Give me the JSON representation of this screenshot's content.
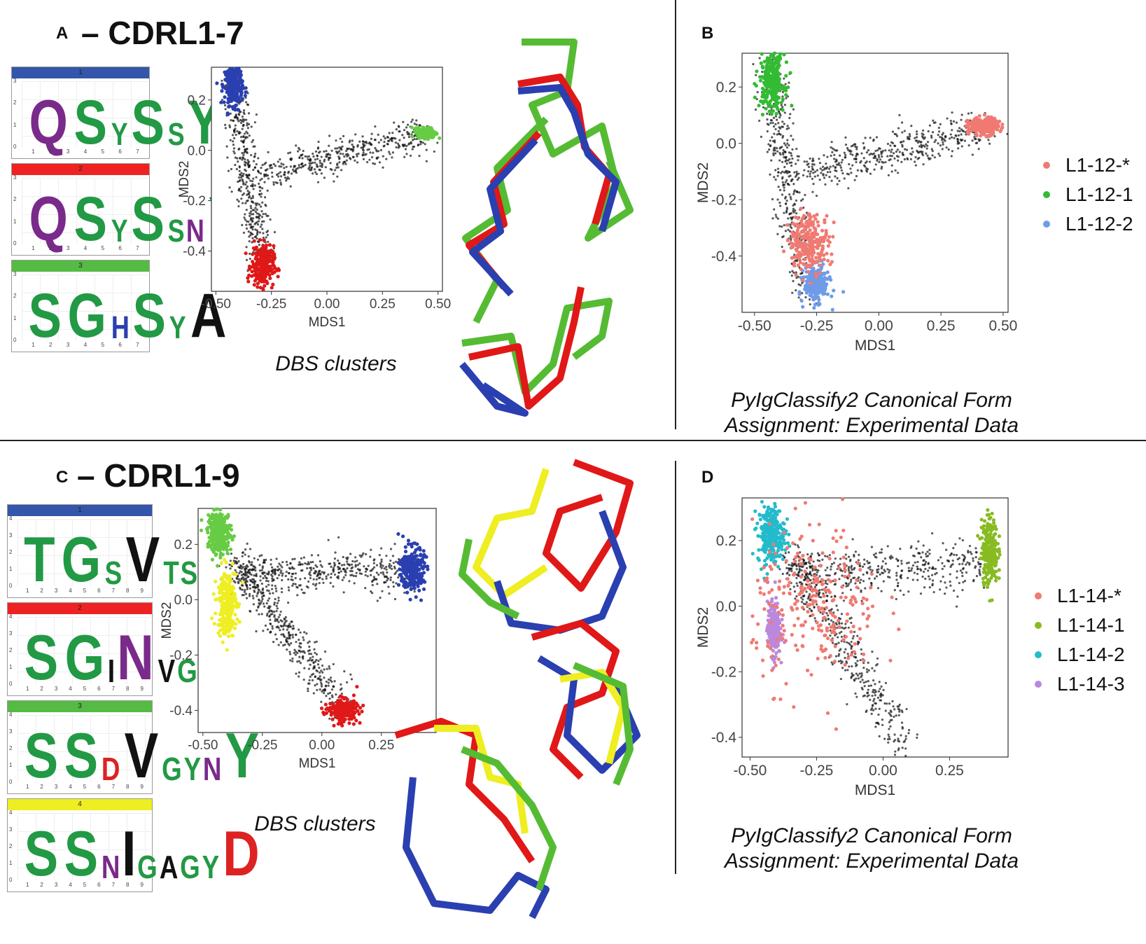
{
  "panelA": {
    "letter": "A",
    "title": "– CDRL1-7",
    "caption": "DBS clusters",
    "logos": [
      {
        "num": "1",
        "color": "#3355aa",
        "seq": "QSYSSY",
        "yticks": [
          "3",
          "2",
          "1",
          "0"
        ],
        "xticks": [
          "1",
          "2",
          "3",
          "4",
          "5",
          "6",
          "7"
        ]
      },
      {
        "num": "2",
        "color": "#ee2222",
        "seq": "QSYSSNY",
        "yticks": [
          "3",
          "2",
          "1",
          "0"
        ],
        "xticks": [
          "1",
          "2",
          "3",
          "4",
          "5",
          "6",
          "7"
        ]
      },
      {
        "num": "3",
        "color": "#55bb44",
        "seq": "SGHSYA",
        "yticks": [
          "3",
          "2",
          "1",
          "0"
        ],
        "xticks": [
          "1",
          "2",
          "3",
          "4",
          "5",
          "6",
          "7"
        ]
      }
    ]
  },
  "panelB": {
    "letter": "B",
    "caption1": "PyIgClassify2 Canonical Form",
    "caption2": "Assignment: Experimental Data",
    "legend": [
      {
        "label": "L1-12-*",
        "color": "#f07a72"
      },
      {
        "label": "L1-12-1",
        "color": "#33bb33"
      },
      {
        "label": "L1-12-2",
        "color": "#6f9be8"
      }
    ]
  },
  "panelC": {
    "letter": "C",
    "title": "– CDRL1-9",
    "caption": "DBS clusters",
    "logos": [
      {
        "num": "1",
        "color": "#3355aa",
        "seq": "TGSVTSHY",
        "yticks": [
          "4",
          "3",
          "2",
          "1",
          "0"
        ],
        "xticks": [
          "1",
          "2",
          "3",
          "4",
          "5",
          "6",
          "7",
          "8",
          "9"
        ]
      },
      {
        "num": "2",
        "color": "#ee2222",
        "seq": "SGINVGTYR",
        "yticks": [
          "4",
          "3",
          "2",
          "1",
          "0"
        ],
        "xticks": [
          "1",
          "2",
          "3",
          "4",
          "5",
          "6",
          "7",
          "8",
          "9"
        ]
      },
      {
        "num": "3",
        "color": "#55bb44",
        "seq": "SSDVGYNY",
        "yticks": [
          "4",
          "3",
          "2",
          "1",
          "0"
        ],
        "xticks": [
          "1",
          "2",
          "3",
          "4",
          "5",
          "6",
          "7",
          "8",
          "9"
        ]
      },
      {
        "num": "4",
        "color": "#eeee22",
        "seq": "SSNIGAGYD",
        "yticks": [
          "4",
          "3",
          "2",
          "1",
          "0"
        ],
        "xticks": [
          "1",
          "2",
          "3",
          "4",
          "5",
          "6",
          "7",
          "8",
          "9"
        ]
      }
    ]
  },
  "panelD": {
    "letter": "D",
    "caption1": "PyIgClassify2 Canonical Form",
    "caption2": "Assignment: Experimental Data",
    "legend": [
      {
        "label": "L1-14-*",
        "color": "#f07a72"
      },
      {
        "label": "L1-14-1",
        "color": "#88bb22"
      },
      {
        "label": "L1-14-2",
        "color": "#22bbcc"
      },
      {
        "label": "L1-14-3",
        "color": "#bb88dd"
      }
    ]
  },
  "chart_data": [
    {
      "id": "A-scatter",
      "type": "scatter",
      "xlabel": "MDS1",
      "ylabel": "MDS2",
      "xlim": [
        -0.52,
        0.52
      ],
      "ylim": [
        -0.56,
        0.33
      ],
      "xticks": [
        "-0.50",
        "-0.25",
        "0.00",
        "0.25",
        "0.50"
      ],
      "yticks": [
        "0.2",
        "0.0",
        "-0.2",
        "-0.4"
      ],
      "xtickvals": [
        -0.5,
        -0.25,
        0,
        0.25,
        0.5
      ],
      "ytickvals": [
        0.2,
        0.0,
        -0.2,
        -0.4
      ],
      "clusters": [
        {
          "color": "#2a3fb0",
          "cx": -0.42,
          "cy": 0.26,
          "sx": 0.02,
          "sy": 0.04
        },
        {
          "color": "#e01818",
          "cx": -0.29,
          "cy": -0.46,
          "sx": 0.025,
          "sy": 0.04
        },
        {
          "color": "#66cc44",
          "cx": 0.45,
          "cy": 0.07,
          "sx": 0.02,
          "sy": 0.01
        }
      ],
      "background": [
        {
          "from": [
            -0.42,
            0.25
          ],
          "to": [
            -0.29,
            -0.45
          ]
        },
        {
          "from": [
            -0.3,
            -0.1
          ],
          "to": [
            0.45,
            0.07
          ]
        }
      ]
    },
    {
      "id": "B-scatter",
      "type": "scatter",
      "xlabel": "MDS1",
      "ylabel": "MDS2",
      "xlim": [
        -0.55,
        0.52
      ],
      "ylim": [
        -0.6,
        0.32
      ],
      "xticks": [
        "-0.50",
        "-0.25",
        "0.00",
        "0.25",
        "0.50"
      ],
      "yticks": [
        "0.2",
        "0.0",
        "-0.2",
        "-0.4"
      ],
      "xtickvals": [
        -0.5,
        -0.25,
        0,
        0.25,
        0.5
      ],
      "ytickvals": [
        0.2,
        0.0,
        -0.2,
        -0.4
      ],
      "clusters": [
        {
          "color": "#33bb33",
          "cx": -0.43,
          "cy": 0.22,
          "sx": 0.025,
          "sy": 0.05
        },
        {
          "color": "#6f9be8",
          "cx": -0.25,
          "cy": -0.5,
          "sx": 0.025,
          "sy": 0.03
        },
        {
          "color": "#f07a72",
          "cx": 0.42,
          "cy": 0.06,
          "sx": 0.03,
          "sy": 0.015
        },
        {
          "color": "#f07a72",
          "cx": -0.28,
          "cy": -0.35,
          "sx": 0.04,
          "sy": 0.05
        }
      ],
      "background": [
        {
          "from": [
            -0.44,
            0.27
          ],
          "to": [
            -0.3,
            -0.52
          ]
        },
        {
          "from": [
            -0.3,
            -0.1
          ],
          "to": [
            0.45,
            0.06
          ]
        }
      ]
    },
    {
      "id": "C-scatter",
      "type": "scatter",
      "xlabel": "MDS1",
      "ylabel": "MDS2",
      "xlim": [
        -0.52,
        0.48
      ],
      "ylim": [
        -0.48,
        0.33
      ],
      "xticks": [
        "-0.50",
        "-0.25",
        "0.00",
        "0.25"
      ],
      "yticks": [
        "0.2",
        "0.0",
        "-0.2",
        "-0.4"
      ],
      "xtickvals": [
        -0.5,
        -0.25,
        0,
        0.25
      ],
      "ytickvals": [
        0.2,
        0.0,
        -0.2,
        -0.4
      ],
      "clusters": [
        {
          "color": "#66cc44",
          "cx": -0.43,
          "cy": 0.24,
          "sx": 0.025,
          "sy": 0.04
        },
        {
          "color": "#eeee22",
          "cx": -0.4,
          "cy": -0.01,
          "sx": 0.02,
          "sy": 0.06
        },
        {
          "color": "#2a3fb0",
          "cx": 0.38,
          "cy": 0.11,
          "sx": 0.025,
          "sy": 0.04
        },
        {
          "color": "#e01818",
          "cx": 0.09,
          "cy": -0.4,
          "sx": 0.03,
          "sy": 0.02
        }
      ],
      "background": [
        {
          "from": [
            -0.38,
            0.15
          ],
          "to": [
            0.08,
            -0.38
          ]
        },
        {
          "from": [
            -0.35,
            0.1
          ],
          "to": [
            0.38,
            0.1
          ]
        }
      ]
    },
    {
      "id": "D-scatter",
      "type": "scatter",
      "xlabel": "MDS1",
      "ylabel": "MDS2",
      "xlim": [
        -0.53,
        0.47
      ],
      "ylim": [
        -0.46,
        0.33
      ],
      "xticks": [
        "-0.50",
        "-0.25",
        "0.00",
        "0.25"
      ],
      "yticks": [
        "0.2",
        "0.0",
        "-0.2",
        "-0.4"
      ],
      "xtickvals": [
        -0.5,
        -0.25,
        0,
        0.25
      ],
      "ytickvals": [
        0.2,
        0.0,
        -0.2,
        -0.4
      ],
      "clusters": [
        {
          "color": "#22bbcc",
          "cx": -0.42,
          "cy": 0.22,
          "sx": 0.025,
          "sy": 0.045
        },
        {
          "color": "#bb88dd",
          "cx": -0.41,
          "cy": -0.07,
          "sx": 0.012,
          "sy": 0.04
        },
        {
          "color": "#88bb22",
          "cx": 0.4,
          "cy": 0.17,
          "sx": 0.015,
          "sy": 0.05
        },
        {
          "color": "#f07a72",
          "cx": -0.25,
          "cy": 0.0,
          "sx": 0.12,
          "sy": 0.12
        }
      ],
      "background": [
        {
          "from": [
            -0.35,
            0.15
          ],
          "to": [
            0.08,
            -0.42
          ]
        },
        {
          "from": [
            -0.35,
            0.1
          ],
          "to": [
            0.38,
            0.12
          ]
        }
      ]
    }
  ]
}
